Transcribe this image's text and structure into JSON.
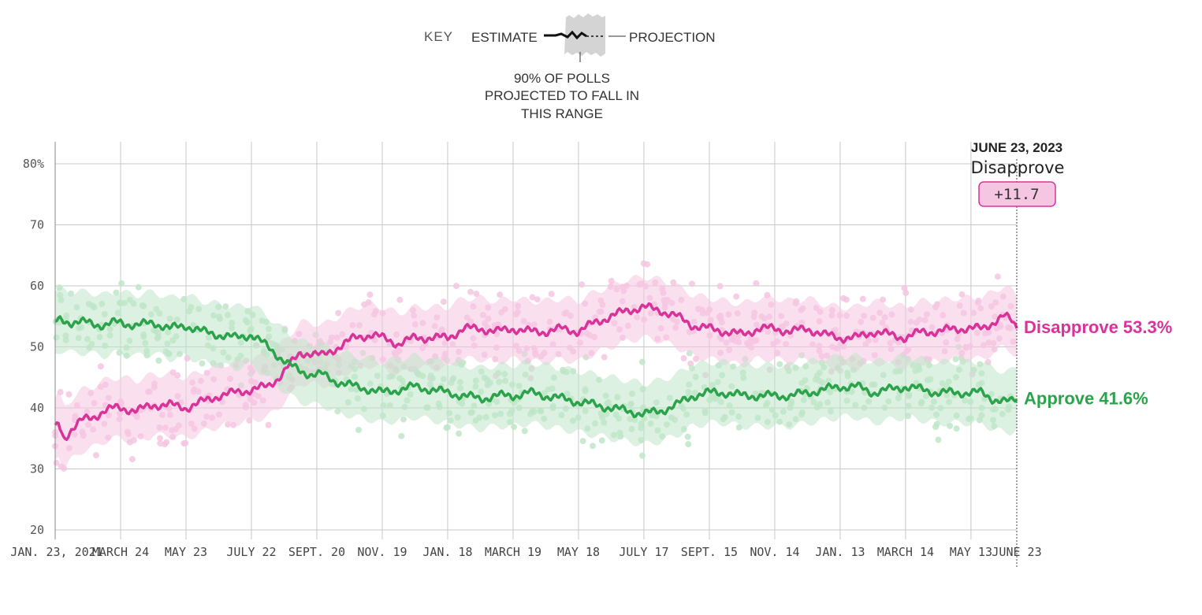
{
  "key": {
    "title": "KEY",
    "estimate_label": "ESTIMATE",
    "projection_label": "PROJECTION",
    "range_note": [
      "90% OF POLLS",
      "PROJECTED TO FALL IN",
      "THIS RANGE"
    ]
  },
  "hover": {
    "date": "JUNE 23, 2023",
    "leader": "Disapprove",
    "margin": "+11.7"
  },
  "colors": {
    "approve": "#2aa34a",
    "approve_light": "#bfe6c9",
    "disapprove": "#d9339a",
    "disapprove_light": "#f5c6e2",
    "grid": "#c8c8c8"
  },
  "chart_data": {
    "type": "line",
    "title": "",
    "ylabel": "",
    "ylim": [
      20,
      82
    ],
    "y_ticks": [
      {
        "value": 80,
        "label": "80%"
      },
      {
        "value": 70,
        "label": "70"
      },
      {
        "value": 60,
        "label": "60"
      },
      {
        "value": 50,
        "label": "50"
      },
      {
        "value": 40,
        "label": "40"
      },
      {
        "value": 30,
        "label": "30"
      },
      {
        "value": 20,
        "label": "20"
      }
    ],
    "x_domain_days": [
      0,
      882
    ],
    "x_ticks": [
      {
        "day": 0,
        "label": "JAN. 23, 2021"
      },
      {
        "day": 60,
        "label": "MARCH 24"
      },
      {
        "day": 120,
        "label": "MAY 23"
      },
      {
        "day": 180,
        "label": "JULY 22"
      },
      {
        "day": 240,
        "label": "SEPT. 20"
      },
      {
        "day": 300,
        "label": "NOV. 19"
      },
      {
        "day": 360,
        "label": "JAN. 18"
      },
      {
        "day": 420,
        "label": "MARCH 19"
      },
      {
        "day": 480,
        "label": "MAY 18"
      },
      {
        "day": 540,
        "label": "JULY 17"
      },
      {
        "day": 600,
        "label": "SEPT. 15"
      },
      {
        "day": 660,
        "label": "NOV. 14"
      },
      {
        "day": 720,
        "label": "JAN. 13"
      },
      {
        "day": 780,
        "label": "MARCH 14"
      },
      {
        "day": 840,
        "label": "MAY 13"
      },
      {
        "day": 882,
        "label": "JUNE 23"
      }
    ],
    "series": [
      {
        "name": "Disapprove",
        "end_label": "Disapprove 53.3%",
        "end_value": 53.3,
        "band_width": 5,
        "days": [
          0,
          3,
          8,
          15,
          25,
          35,
          45,
          55,
          60,
          75,
          90,
          105,
          120,
          135,
          150,
          165,
          180,
          195,
          205,
          215,
          225,
          235,
          245,
          255,
          265,
          275,
          290,
          300,
          315,
          330,
          345,
          360,
          375,
          390,
          405,
          420,
          435,
          450,
          465,
          480,
          495,
          510,
          525,
          540,
          555,
          570,
          585,
          600,
          615,
          630,
          645,
          660,
          675,
          690,
          705,
          720,
          735,
          750,
          765,
          780,
          795,
          810,
          825,
          840,
          850,
          860,
          870,
          876,
          882
        ],
        "values": [
          36.5,
          37.5,
          35,
          36.5,
          38,
          38.5,
          39.5,
          40,
          40,
          39.5,
          40.5,
          40.5,
          40,
          41,
          42,
          42.5,
          43,
          43.5,
          45,
          47,
          49,
          49,
          48.5,
          49.5,
          50.5,
          51.5,
          52,
          51.5,
          50.5,
          51.5,
          51.5,
          51.5,
          53,
          53,
          52.5,
          53,
          52.5,
          52.5,
          53,
          52.5,
          54,
          55,
          56,
          56.5,
          56,
          55,
          53.5,
          53,
          52.5,
          52,
          53,
          53,
          52.5,
          53,
          52,
          51.5,
          51.5,
          52.5,
          52,
          51.5,
          52.5,
          52.5,
          53,
          53,
          53,
          54,
          55,
          54.5,
          53.3
        ]
      },
      {
        "name": "Approve",
        "end_label": "Approve 41.6%",
        "end_value": 41.6,
        "band_width": 5,
        "days": [
          0,
          5,
          15,
          30,
          45,
          55,
          60,
          75,
          90,
          105,
          120,
          135,
          150,
          165,
          180,
          195,
          205,
          215,
          225,
          235,
          245,
          255,
          265,
          275,
          290,
          300,
          315,
          330,
          345,
          360,
          375,
          390,
          405,
          420,
          435,
          450,
          465,
          480,
          495,
          510,
          525,
          540,
          555,
          570,
          585,
          600,
          615,
          630,
          645,
          660,
          675,
          690,
          705,
          720,
          735,
          750,
          765,
          780,
          795,
          810,
          825,
          840,
          850,
          860,
          870,
          876,
          882
        ],
        "values": [
          54,
          54.5,
          54,
          54,
          53.5,
          54,
          54,
          53.5,
          54,
          53,
          53.5,
          52.5,
          52,
          51.5,
          52,
          50,
          48.5,
          47,
          46,
          45.5,
          45.5,
          44.5,
          44,
          43.5,
          43,
          42.5,
          43,
          43.5,
          43,
          42.5,
          42,
          41.5,
          42,
          42,
          42.5,
          42,
          41.5,
          41,
          40.5,
          40,
          39.5,
          39,
          39.5,
          40.5,
          42,
          42.5,
          42.5,
          42,
          42,
          42,
          42,
          42.5,
          43,
          43.5,
          43.5,
          42.5,
          43,
          43.5,
          43,
          42.5,
          42.5,
          42.5,
          42.5,
          41.5,
          41,
          41,
          41.6
        ]
      }
    ]
  }
}
